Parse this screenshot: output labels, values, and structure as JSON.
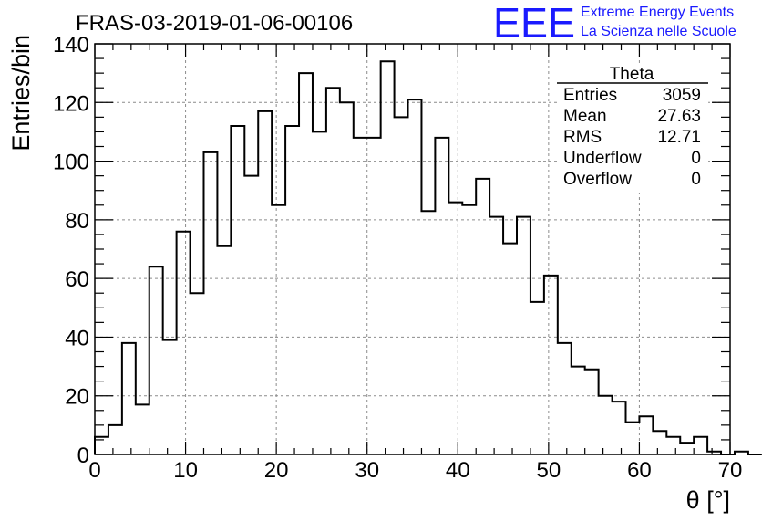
{
  "chart_data": {
    "type": "bar",
    "title": "FRAS-03-2019-01-06-00106",
    "xlabel": "θ [°]",
    "ylabel": "Entries/bin",
    "xlim": [
      0,
      70
    ],
    "ylim": [
      0,
      140
    ],
    "x_ticks": [
      0,
      10,
      20,
      30,
      40,
      50,
      60,
      70
    ],
    "y_ticks": [
      0,
      20,
      40,
      60,
      80,
      100,
      120,
      140
    ],
    "grid": true,
    "bin_width": 1.5,
    "bin_edges_start": 0,
    "values": [
      6,
      10,
      38,
      17,
      64,
      39,
      76,
      55,
      103,
      71,
      112,
      95,
      117,
      85,
      112,
      130,
      110,
      125,
      120,
      108,
      108,
      134,
      115,
      121,
      83,
      108,
      86,
      85,
      94,
      81,
      72,
      81,
      52,
      61,
      38,
      30,
      29,
      20,
      18,
      11,
      13,
      8,
      6,
      4,
      6,
      1,
      0,
      1,
      0
    ]
  },
  "stats": {
    "name": "Theta",
    "rows": [
      {
        "label": "Entries",
        "value": "3059"
      },
      {
        "label": "Mean",
        "value": "27.63"
      },
      {
        "label": "RMS",
        "value": "12.71"
      },
      {
        "label": "Underflow",
        "value": "0"
      },
      {
        "label": "Overflow",
        "value": "0"
      }
    ]
  },
  "logo": {
    "mark": "EEE",
    "line1": "Extreme Energy Events",
    "line2": "La Scienza nelle Scuole",
    "color": "#1a1aff"
  }
}
